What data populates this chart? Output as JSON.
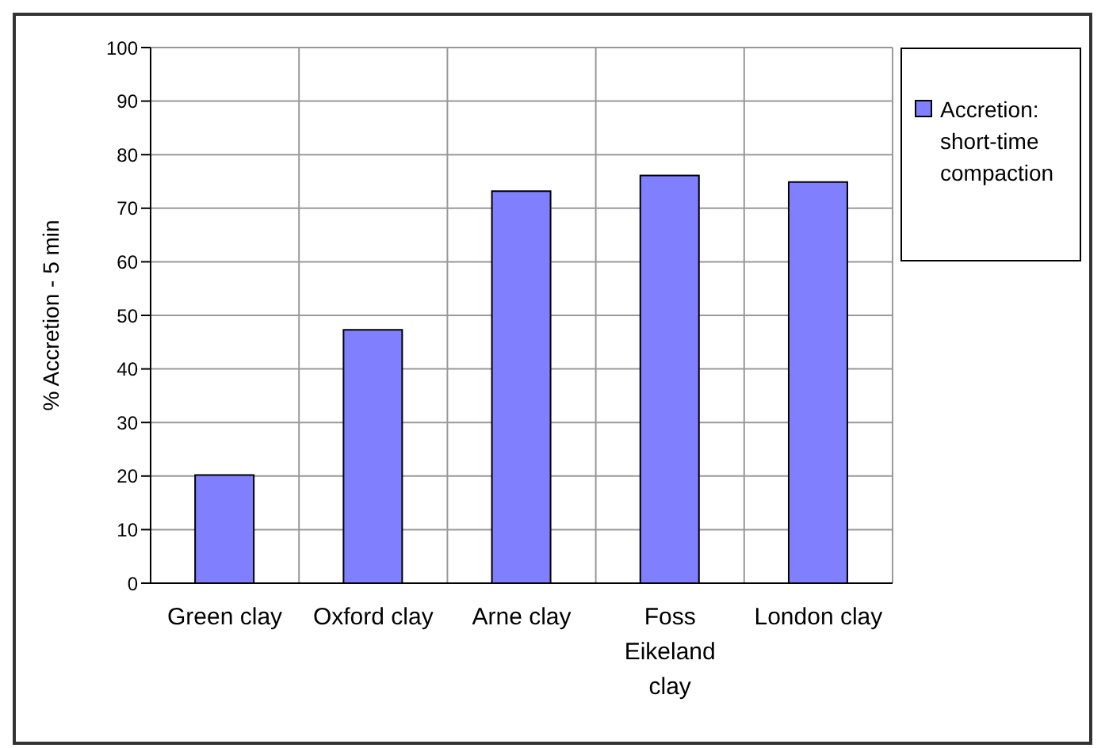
{
  "chart_data": {
    "type": "bar",
    "ylabel": "% Accretion - 5 min",
    "categories": [
      "Green clay",
      "Oxford clay",
      "Arne clay",
      "Foss Eikeland clay",
      "London clay"
    ],
    "series": [
      {
        "name": "Accretion: short-time compaction",
        "color": "#8080ff",
        "values": [
          20.2,
          47.3,
          73.2,
          76.1,
          74.9
        ]
      }
    ],
    "ylim": [
      0,
      100
    ],
    "yticks": [
      0,
      10,
      20,
      30,
      40,
      50,
      60,
      70,
      80,
      90,
      100
    ],
    "grid": true,
    "legend": "top right"
  }
}
